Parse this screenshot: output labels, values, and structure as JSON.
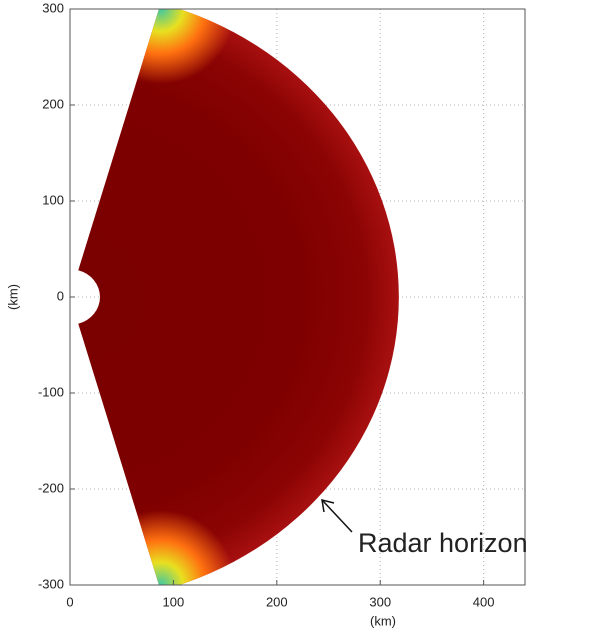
{
  "chart_data": {
    "type": "sector",
    "xlabel": "(km)",
    "ylabel": "(km)",
    "annotation": "Radar horizon",
    "xlim": [
      0,
      440
    ],
    "ylim": [
      -300,
      300
    ],
    "xticks": [
      0,
      100,
      200,
      300,
      400
    ],
    "yticks": [
      -300,
      -200,
      -100,
      0,
      100,
      200,
      300
    ],
    "grid": true,
    "sector": {
      "inner_radius": 29,
      "outer_radius": 318,
      "angle_range": [
        -74,
        74
      ]
    },
    "colors": [
      "#7a0000",
      "#7e0000",
      "#8c0404",
      "#a81010"
    ],
    "edge_colors": [
      "#40c8a0",
      "#e8e020",
      "#ff7010"
    ]
  }
}
